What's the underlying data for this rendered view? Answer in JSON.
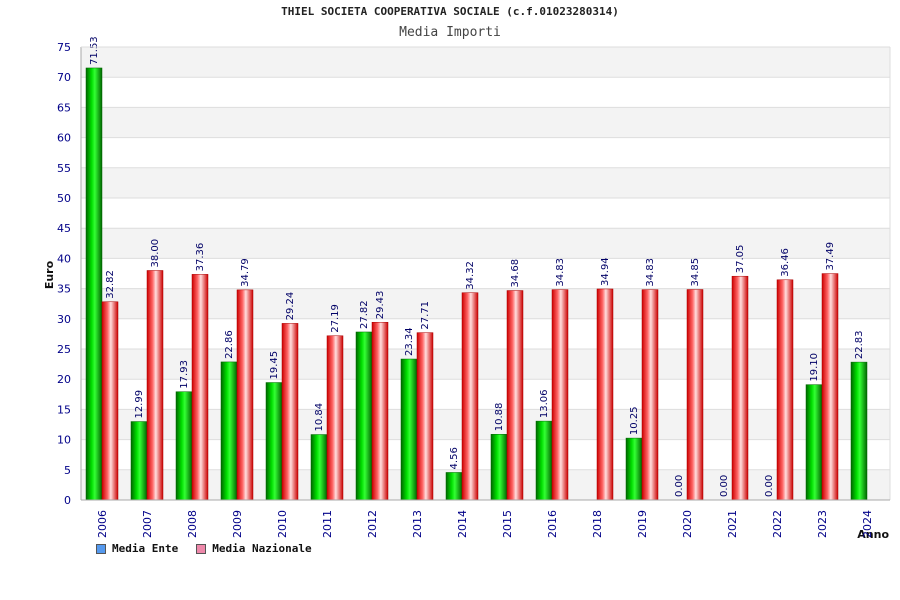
{
  "chart_data": {
    "type": "bar",
    "title": "THIEL SOCIETA COOPERATIVA SOCIALE (c.f.01023280314)",
    "subtitle": "Media Importi",
    "xlabel": "Anno",
    "ylabel": "Euro",
    "ylim": [
      0,
      75
    ],
    "yticks": [
      0,
      5,
      10,
      15,
      20,
      25,
      30,
      35,
      40,
      45,
      50,
      55,
      60,
      65,
      70,
      75
    ],
    "categories": [
      "2006",
      "2007",
      "2008",
      "2009",
      "2010",
      "2011",
      "2012",
      "2013",
      "2014",
      "2015",
      "2016",
      "2018",
      "2019",
      "2020",
      "2021",
      "2022",
      "2023",
      "2024"
    ],
    "series": [
      {
        "name": "Media Ente",
        "color": "#00cc00",
        "values": [
          71.53,
          12.99,
          17.93,
          22.86,
          19.45,
          10.84,
          27.82,
          23.34,
          4.56,
          10.88,
          13.06,
          null,
          10.25,
          0.0,
          0.0,
          0.0,
          19.1,
          22.83
        ],
        "labels": [
          "71.53",
          "12.99",
          "17.93",
          "22.86",
          "19.45",
          "10.84",
          "27.82",
          "23.34",
          "4.56",
          "10.88",
          "13.06",
          "",
          "10.25",
          "0.00",
          "0.00",
          "0.00",
          "19.10",
          "22.83"
        ]
      },
      {
        "name": "Media Nazionale",
        "color": "#ee2222",
        "values": [
          32.82,
          38.0,
          37.36,
          34.79,
          29.24,
          27.19,
          29.43,
          27.71,
          34.32,
          34.68,
          34.83,
          34.94,
          34.83,
          34.85,
          37.05,
          36.46,
          37.49,
          null
        ],
        "labels": [
          "32.82",
          "38.00",
          "37.36",
          "34.79",
          "29.24",
          "27.19",
          "29.43",
          "27.71",
          "34.32",
          "34.68",
          "34.83",
          "34.94",
          "34.83",
          "34.85",
          "37.05",
          "36.46",
          "37.49",
          ""
        ]
      }
    ],
    "legend": [
      {
        "label": "Media Ente",
        "color": "#5599ee"
      },
      {
        "label": "Media Nazionale",
        "color": "#ee88aa"
      }
    ],
    "grid": true,
    "legend_position": "bottom-left"
  }
}
